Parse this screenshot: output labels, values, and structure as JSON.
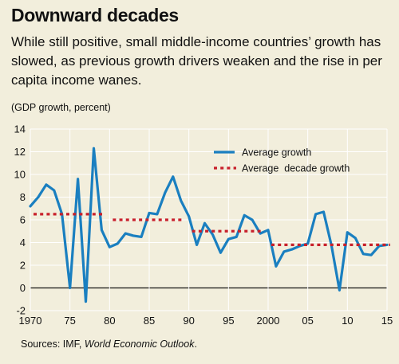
{
  "header": {
    "title": "Downward decades",
    "subtitle": "While still positive, small middle-income countries’ growth has slowed, as previous growth drivers weaken and the rise in per capita income wanes.",
    "units": "(GDP growth, percent)"
  },
  "footer": {
    "source_prefix": "Sources: IMF, ",
    "source_italic": "World Economic Outlook",
    "source_suffix": "."
  },
  "colors": {
    "background": "#f2eedc",
    "growth_line": "#1a7fc0",
    "decade_line": "#c8202b",
    "grid": "#ffffff",
    "zero_line": "#111111"
  },
  "chart_data": {
    "type": "line",
    "xlim": [
      1970,
      2015
    ],
    "ylim": [
      -2,
      14
    ],
    "y_ticks": [
      -2,
      0,
      2,
      4,
      6,
      8,
      10,
      12,
      14
    ],
    "x_ticks": [
      {
        "value": 1970,
        "label": "1970"
      },
      {
        "value": 1975,
        "label": "75"
      },
      {
        "value": 1980,
        "label": "80"
      },
      {
        "value": 1985,
        "label": "85"
      },
      {
        "value": 1990,
        "label": "90"
      },
      {
        "value": 1995,
        "label": "95"
      },
      {
        "value": 2000,
        "label": "2000"
      },
      {
        "value": 2005,
        "label": "05"
      },
      {
        "value": 2010,
        "label": "10"
      },
      {
        "value": 2015,
        "label": "15"
      }
    ],
    "legend_position": "top-right",
    "grid": true,
    "series": [
      {
        "name": "Average growth",
        "style": "solid",
        "x": [
          1970,
          1971,
          1972,
          1973,
          1974,
          1975,
          1976,
          1977,
          1978,
          1979,
          1980,
          1981,
          1982,
          1983,
          1984,
          1985,
          1986,
          1987,
          1988,
          1989,
          1990,
          1991,
          1992,
          1993,
          1994,
          1995,
          1996,
          1997,
          1998,
          1999,
          2000,
          2001,
          2002,
          2003,
          2004,
          2005,
          2006,
          2007,
          2008,
          2009,
          2010,
          2011,
          2012,
          2013,
          2014,
          2015
        ],
        "y": [
          7.2,
          8.0,
          9.1,
          8.6,
          6.5,
          0.0,
          9.6,
          -1.2,
          12.3,
          5.1,
          3.6,
          3.9,
          4.8,
          4.6,
          4.5,
          6.6,
          6.5,
          8.4,
          9.8,
          7.7,
          6.3,
          3.8,
          5.7,
          4.7,
          3.1,
          4.3,
          4.5,
          6.4,
          6.0,
          4.8,
          5.1,
          1.9,
          3.2,
          3.4,
          3.7,
          3.9,
          6.5,
          6.7,
          3.7,
          -0.2,
          4.9,
          4.4,
          3.0,
          2.9,
          3.7,
          3.8
        ]
      },
      {
        "name": "Average  decade growth",
        "style": "dotted",
        "segments": [
          {
            "x": [
              1970,
              1979
            ],
            "y": 6.5
          },
          {
            "x": [
              1980,
              1989
            ],
            "y": 6.0
          },
          {
            "x": [
              1990,
              1999
            ],
            "y": 5.0
          },
          {
            "x": [
              2000,
              2015
            ],
            "y": 3.8
          }
        ]
      }
    ]
  }
}
